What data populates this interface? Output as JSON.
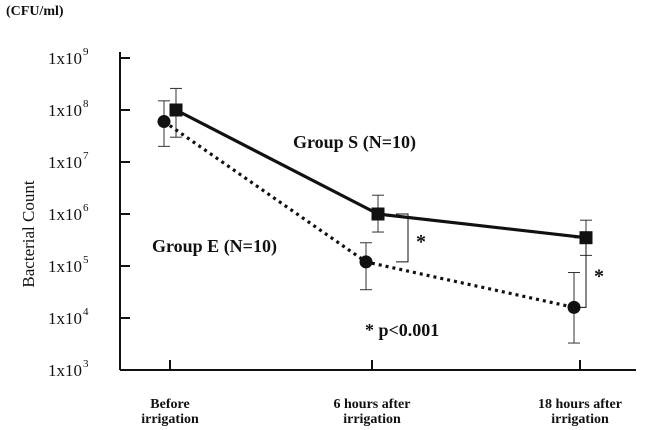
{
  "chart_data": {
    "type": "line",
    "yscale": "log",
    "ylabel": "Bacterial Count",
    "yunit": "(CFU/ml)",
    "ylim": [
      1000,
      1000000000
    ],
    "y_ticks": [
      {
        "base": "1x10",
        "exp": "3"
      },
      {
        "base": "1x10",
        "exp": "4"
      },
      {
        "base": "1x10",
        "exp": "5"
      },
      {
        "base": "1x10",
        "exp": "6"
      },
      {
        "base": "1x10",
        "exp": "7"
      },
      {
        "base": "1x10",
        "exp": "8"
      },
      {
        "base": "1x10",
        "exp": "9"
      }
    ],
    "categories": [
      [
        "Before",
        "irrigation"
      ],
      [
        "6 hours after",
        "irrigation"
      ],
      [
        "18 hours after",
        "irrigation"
      ]
    ],
    "series": [
      {
        "name": "Group S (N=10)",
        "marker": "square",
        "line": "solid",
        "values": [
          100000000,
          1000000,
          350000
        ],
        "err_high": [
          260000000,
          2300000,
          760000
        ],
        "err_low": [
          30000000,
          450000,
          160000
        ]
      },
      {
        "name": "Group E (N=10)",
        "marker": "circle",
        "line": "dotted",
        "values": [
          60000000,
          120000,
          16000
        ],
        "err_high": [
          150000000,
          280000,
          75000
        ],
        "err_low": [
          20000000,
          35000,
          3300
        ]
      }
    ],
    "significance": [
      {
        "between": 1,
        "label": "*"
      },
      {
        "between": 2,
        "label": "*"
      }
    ],
    "annotation": "* p<0.001",
    "grid": false,
    "legend": "inline labels"
  }
}
